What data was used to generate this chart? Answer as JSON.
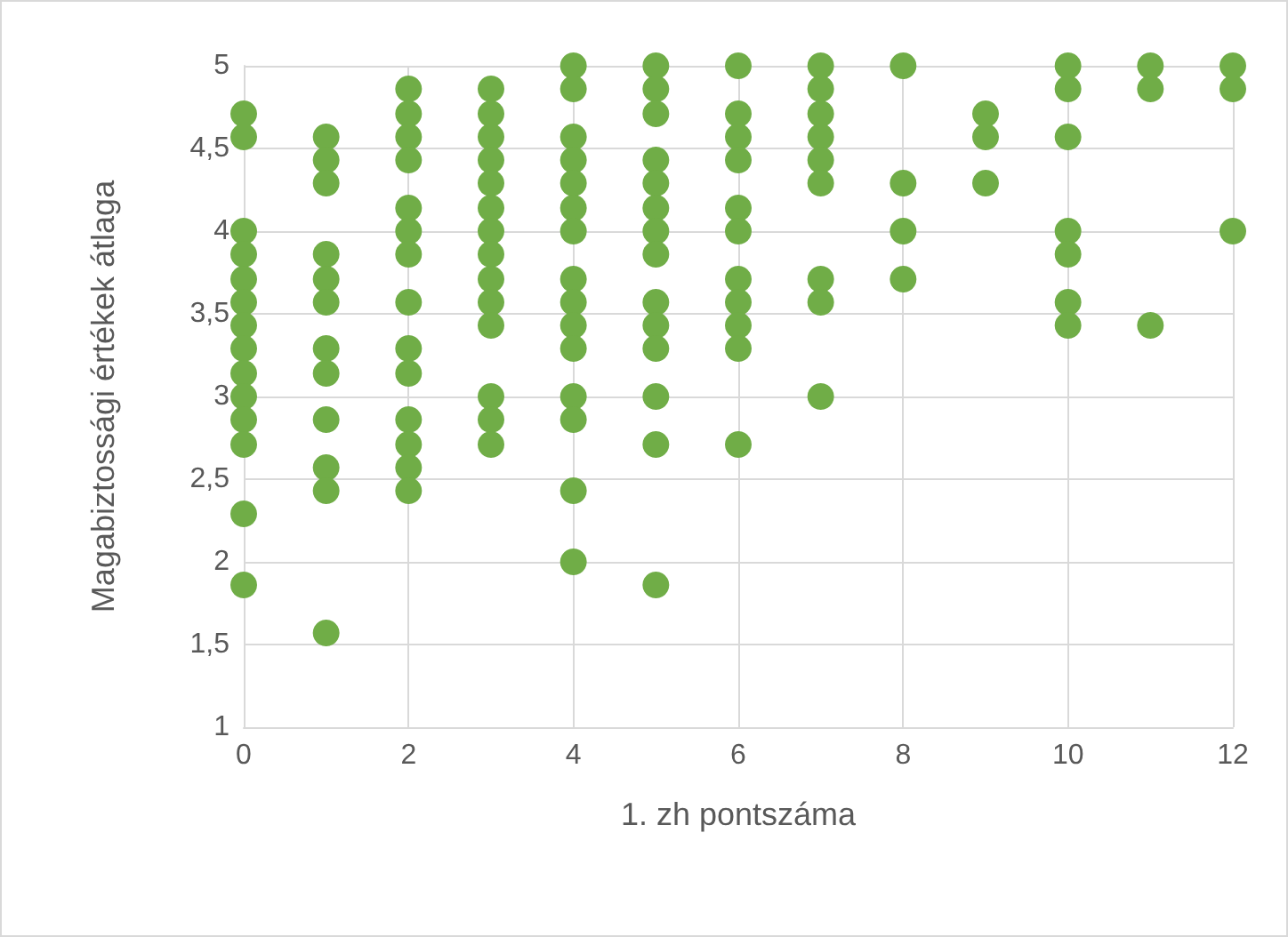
{
  "chart_data": {
    "type": "scatter",
    "xlabel": "1. zh pontszáma",
    "ylabel": "Magabiztossági értékek átlaga",
    "marker": "circle",
    "grid": true,
    "xlim": [
      0,
      12
    ],
    "xticks": [
      0,
      2,
      4,
      6,
      8,
      10,
      12
    ],
    "ylim": [
      1,
      5
    ],
    "yticks": [
      1,
      {
        "value": 1.5,
        "label": "1,5"
      },
      2,
      {
        "value": 2.5,
        "label": "2,5"
      },
      3,
      {
        "value": 3.5,
        "label": "3,5"
      },
      4,
      {
        "value": 4.5,
        "label": "4,5"
      },
      5
    ],
    "series": [
      {
        "color": "#70ad47",
        "x": [
          0,
          0,
          0,
          0,
          0,
          0,
          0,
          0,
          0,
          0,
          0,
          0,
          0,
          0,
          1,
          1,
          1,
          1,
          1,
          1,
          1,
          1,
          1,
          1,
          1,
          1,
          2,
          2,
          2,
          2,
          2,
          2,
          2,
          2,
          2,
          2,
          2,
          2,
          2,
          2,
          3,
          3,
          3,
          3,
          3,
          3,
          3,
          3,
          3,
          3,
          3,
          3,
          3,
          3,
          4,
          4,
          4,
          4,
          4,
          4,
          4,
          4,
          4,
          4,
          4,
          4,
          4,
          4,
          4,
          5,
          5,
          5,
          5,
          5,
          5,
          5,
          5,
          5,
          5,
          5,
          5,
          5,
          5,
          6,
          6,
          6,
          6,
          6,
          6,
          6,
          6,
          6,
          6,
          6,
          7,
          7,
          7,
          7,
          7,
          7,
          7,
          7,
          7,
          8,
          8,
          8,
          8,
          9,
          9,
          9,
          10,
          10,
          10,
          10,
          10,
          10,
          10,
          11,
          11,
          11,
          12,
          12,
          12
        ],
        "values": [
          4.71,
          4.57,
          4,
          3.86,
          3.71,
          3.57,
          3.43,
          3.29,
          3.14,
          3,
          2.86,
          2.71,
          2.29,
          1.86,
          4.57,
          4.43,
          4.29,
          3.86,
          3.71,
          3.57,
          3.29,
          3.14,
          2.86,
          2.57,
          2.43,
          1.57,
          4.86,
          4.71,
          4.57,
          4.43,
          4.14,
          4,
          3.86,
          3.57,
          3.29,
          3.14,
          2.86,
          2.71,
          2.57,
          2.43,
          4.86,
          4.71,
          4.57,
          4.43,
          4.29,
          4.14,
          4,
          3.86,
          3.71,
          3.57,
          3.43,
          3,
          2.86,
          2.71,
          5,
          4.86,
          4.57,
          4.43,
          4.29,
          4.14,
          4,
          3.71,
          3.57,
          3.43,
          3.29,
          3,
          2.86,
          2.43,
          2,
          5,
          4.86,
          4.71,
          4.43,
          4.29,
          4.14,
          4,
          3.86,
          3.57,
          3.43,
          3.29,
          3,
          2.71,
          1.86,
          5,
          4.71,
          4.57,
          4.43,
          4.14,
          4,
          3.71,
          3.57,
          3.43,
          3.29,
          2.71,
          5,
          4.86,
          4.71,
          4.57,
          4.43,
          4.29,
          3.71,
          3.57,
          3,
          5,
          4.29,
          4,
          3.71,
          4.71,
          4.57,
          4.29,
          5,
          4.86,
          4.57,
          4,
          3.86,
          3.57,
          3.43,
          5,
          4.86,
          3.43,
          5,
          4.86,
          4
        ]
      }
    ]
  }
}
